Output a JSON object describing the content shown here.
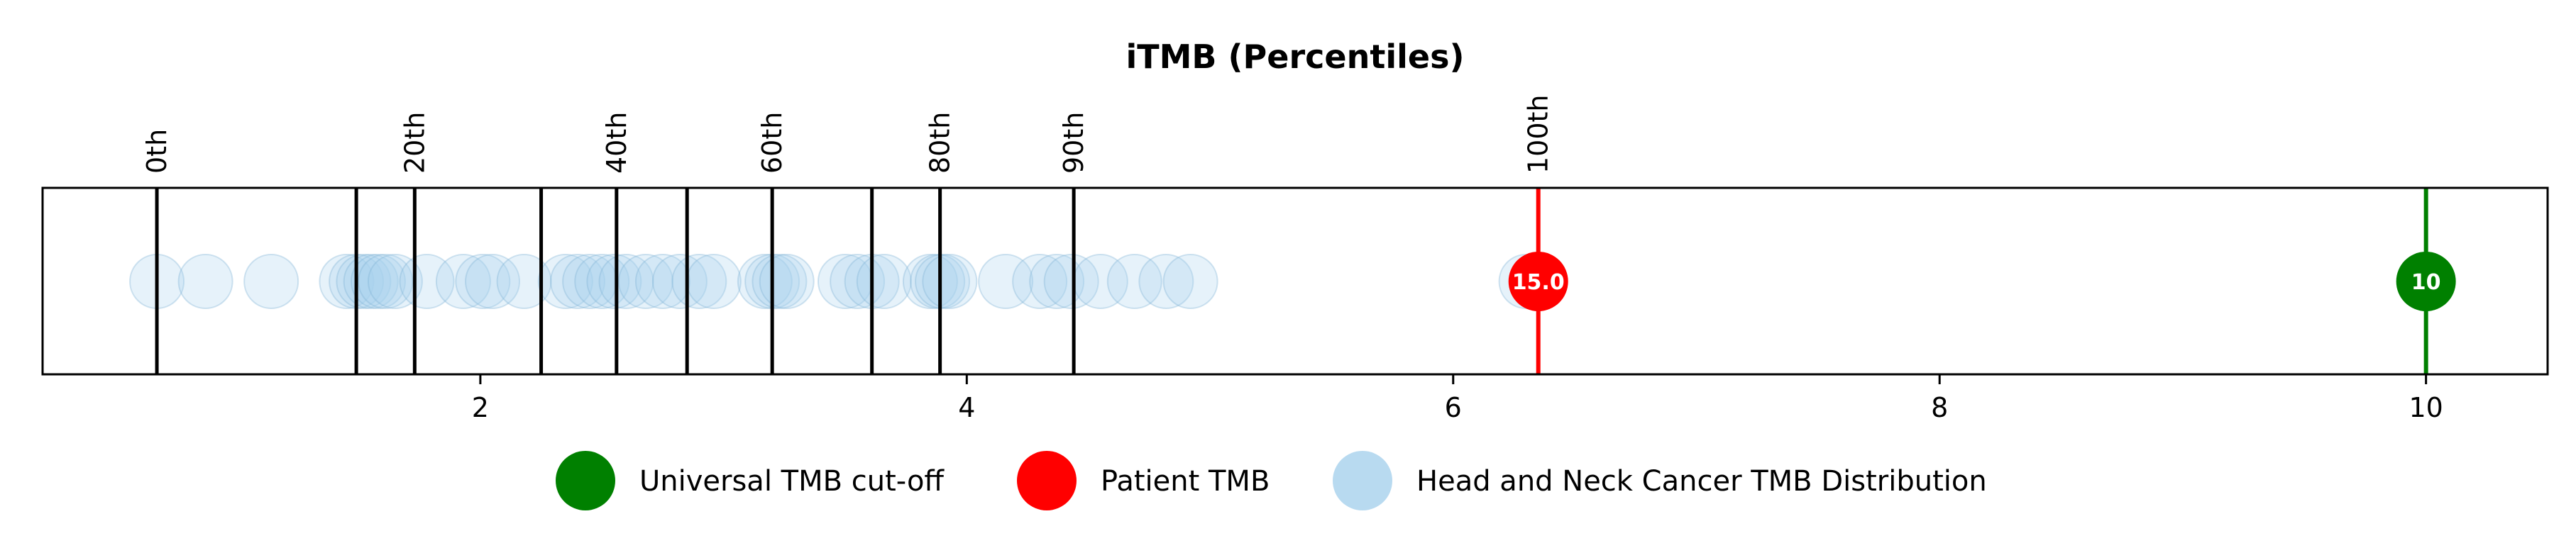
{
  "chart_data": {
    "type": "scatter",
    "title": "iTMB (Percentiles)",
    "xlim": [
      0.2,
      10.5
    ],
    "x_ticks": [
      {
        "value": 2,
        "label": "2"
      },
      {
        "value": 4,
        "label": "4"
      },
      {
        "value": 6,
        "label": "6"
      },
      {
        "value": 8,
        "label": "8"
      },
      {
        "value": 10,
        "label": "10"
      }
    ],
    "percentile_lines": [
      {
        "x": 0.67,
        "label": "0th"
      },
      {
        "x": 1.49,
        "label": ""
      },
      {
        "x": 1.73,
        "label": "20th"
      },
      {
        "x": 2.25,
        "label": ""
      },
      {
        "x": 2.56,
        "label": "40th"
      },
      {
        "x": 2.85,
        "label": ""
      },
      {
        "x": 3.2,
        "label": "60th"
      },
      {
        "x": 3.61,
        "label": ""
      },
      {
        "x": 3.89,
        "label": "80th"
      },
      {
        "x": 4.44,
        "label": "90th"
      },
      {
        "x": 6.35,
        "label": "100th"
      }
    ],
    "distribution": {
      "name": "Head and Neck Cancer TMB Distribution",
      "color": "#a6d1ec",
      "x": [
        0.67,
        0.87,
        1.14,
        1.45,
        1.49,
        1.52,
        1.55,
        1.58,
        1.61,
        1.65,
        1.78,
        1.93,
        2.01,
        2.05,
        2.18,
        2.35,
        2.4,
        2.45,
        2.5,
        2.55,
        2.6,
        2.68,
        2.75,
        2.82,
        2.9,
        2.96,
        3.17,
        3.2,
        3.23,
        3.26,
        3.5,
        3.55,
        3.61,
        3.66,
        3.85,
        3.88,
        3.9,
        3.93,
        4.16,
        4.3,
        4.37,
        4.43,
        4.55,
        4.69,
        4.82,
        4.92,
        6.3
      ]
    },
    "patient_tmb": {
      "name": "Patient TMB",
      "x": 6.35,
      "label": "15.0",
      "color": "#ff0000"
    },
    "cutoff": {
      "name": "Universal TMB cut-off",
      "x": 10,
      "label": "10",
      "color": "#008000"
    },
    "legend": {
      "placement": "bottom-center",
      "items": [
        {
          "label": "Universal TMB cut-off",
          "color": "#008000"
        },
        {
          "label": "Patient TMB",
          "color": "#ff0000"
        },
        {
          "label": "Head and Neck Cancer TMB Distribution",
          "color": "#a6d1ec"
        }
      ]
    },
    "grid": false
  }
}
